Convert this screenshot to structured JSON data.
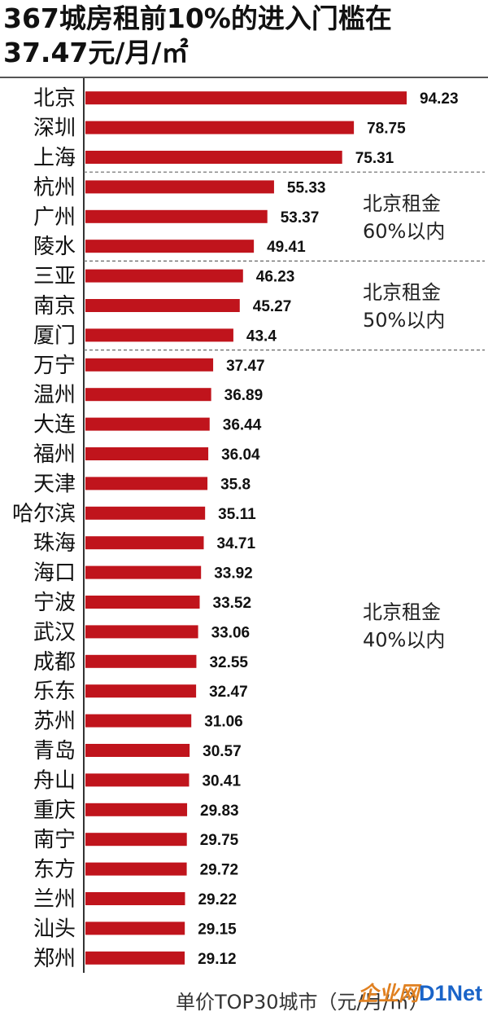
{
  "title": {
    "line1": "367城房租前10%的进入门槛在",
    "line2": "37.47元/月/㎡"
  },
  "chart_data": {
    "type": "bar",
    "orientation": "horizontal",
    "categories": [
      "北京",
      "深圳",
      "上海",
      "杭州",
      "广州",
      "陵水",
      "三亚",
      "南京",
      "厦门",
      "万宁",
      "温州",
      "大连",
      "福州",
      "天津",
      "哈尔滨",
      "珠海",
      "海口",
      "宁波",
      "武汉",
      "成都",
      "乐东",
      "苏州",
      "青岛",
      "舟山",
      "重庆",
      "南宁",
      "东方",
      "兰州",
      "汕头",
      "郑州"
    ],
    "values": [
      94.23,
      78.75,
      75.31,
      55.33,
      53.37,
      49.41,
      46.23,
      45.27,
      43.4,
      37.47,
      36.89,
      36.44,
      36.04,
      35.8,
      35.11,
      34.71,
      33.92,
      33.52,
      33.06,
      32.55,
      32.47,
      31.06,
      30.57,
      30.41,
      29.83,
      29.75,
      29.72,
      29.22,
      29.15,
      29.12
    ],
    "value_labels": [
      "94.23",
      "78.75",
      "75.31",
      "55.33",
      "53.37",
      "49.41",
      "46.23",
      "45.27",
      "43.4",
      "37.47",
      "36.89",
      "36.44",
      "36.04",
      "35.8",
      "35.11",
      "34.71",
      "33.92",
      "33.52",
      "33.06",
      "32.55",
      "32.47",
      "31.06",
      "30.57",
      "30.41",
      "29.83",
      "29.75",
      "29.72",
      "29.22",
      "29.15",
      "29.12"
    ],
    "xlim": [
      0,
      100
    ],
    "bar_color": "#c0141c",
    "grid": false,
    "group_notes": [
      {
        "lines": [
          "北京租金",
          "60%以内"
        ],
        "rows": [
          3,
          5
        ],
        "divider_after_row": 2
      },
      {
        "lines": [
          "北京租金",
          "50%以内"
        ],
        "rows": [
          6,
          8
        ],
        "divider_after_row": 5
      },
      {
        "lines": [
          "北京租金",
          "40%以内"
        ],
        "rows": [
          9,
          29
        ],
        "divider_after_row": 8
      }
    ]
  },
  "footer": {
    "caption": "单价TOP30城市（元/月/㎡）"
  },
  "watermark": {
    "text": "企业网",
    "logo": "D1Net"
  }
}
